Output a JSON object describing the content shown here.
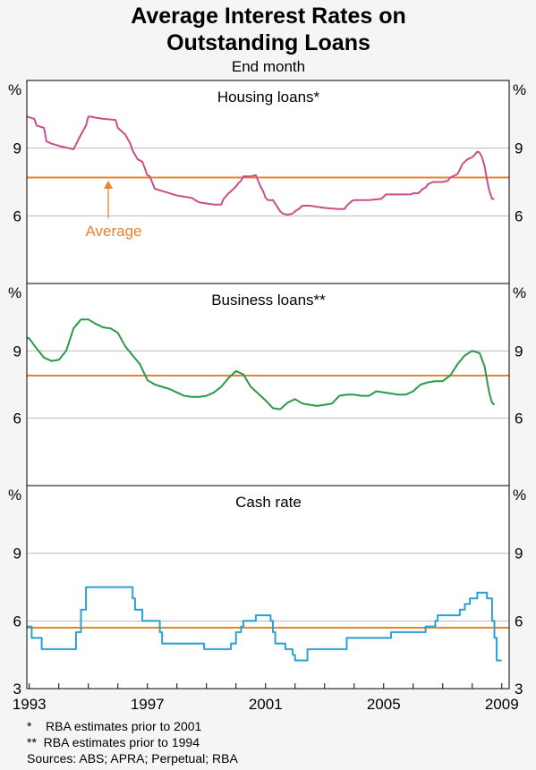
{
  "title_line1": "Average Interest Rates on",
  "title_line2": "Outstanding Loans",
  "subtitle": "End month",
  "unit_label": "%",
  "x_tick_labels": [
    "1993",
    "1997",
    "2001",
    "2005",
    "2009"
  ],
  "footnotes": [
    "*    RBA estimates prior to 2001",
    "**  RBA estimates prior to 1994",
    "Sources: ABS; APRA; Perpetual; RBA"
  ],
  "annotation": "Average",
  "colors": {
    "housing": "#c94f8a",
    "business": "#2a9a48",
    "cash": "#2aa1d4",
    "average": "#e8842e",
    "grid": "#b9b9b9",
    "frame": "#000000"
  },
  "chart_data": [
    {
      "type": "line",
      "title": "Housing loans*",
      "ylim": [
        3,
        12
      ],
      "yticks": [
        6,
        9
      ],
      "xlim": [
        1992.917,
        2009.25
      ],
      "average": 7.7,
      "series": [
        {
          "x": [
            1992.92,
            1993.17,
            1993.25,
            1993.5,
            1993.58,
            1993.75,
            1994.0,
            1994.5,
            1994.75,
            1994.92,
            1995.0,
            1995.08,
            1995.25,
            1995.5,
            1995.92,
            1996.0,
            1996.25,
            1996.42,
            1996.5,
            1996.67,
            1996.83,
            1997.0,
            1997.08,
            1997.25,
            1997.5,
            1997.75,
            1998.0,
            1998.5,
            1998.67,
            1998.75,
            1999.0,
            1999.25,
            1999.5,
            1999.58,
            1999.75,
            1999.92,
            2000.0,
            2000.08,
            2000.17,
            2000.25,
            2000.5,
            2000.67,
            2000.83,
            2000.92,
            2001.0,
            2001.08,
            2001.25,
            2001.5,
            2001.58,
            2001.75,
            2001.92,
            2002.0,
            2002.17,
            2002.25,
            2002.5,
            2002.75,
            2003.0,
            2003.5,
            2003.67,
            2003.75,
            2003.92,
            2004.0,
            2004.5,
            2004.92,
            2005.0,
            2005.08,
            2005.5,
            2005.92,
            2006.0,
            2006.17,
            2006.33,
            2006.42,
            2006.5,
            2006.67,
            2006.83,
            2007.0,
            2007.17,
            2007.25,
            2007.5,
            2007.58,
            2007.67,
            2007.83,
            2008.0,
            2008.08,
            2008.17,
            2008.25,
            2008.33,
            2008.42,
            2008.5,
            2008.58,
            2008.67,
            2008.75
          ],
          "y": [
            10.4,
            10.3,
            10.0,
            9.9,
            9.3,
            9.2,
            9.1,
            8.95,
            9.6,
            10.0,
            10.4,
            10.4,
            10.35,
            10.3,
            10.25,
            9.9,
            9.6,
            9.2,
            8.9,
            8.5,
            8.4,
            7.8,
            7.75,
            7.2,
            7.1,
            7.0,
            6.9,
            6.8,
            6.65,
            6.6,
            6.55,
            6.5,
            6.5,
            6.75,
            7.0,
            7.2,
            7.3,
            7.45,
            7.55,
            7.75,
            7.75,
            7.8,
            7.3,
            7.1,
            6.8,
            6.7,
            6.7,
            6.2,
            6.1,
            6.05,
            6.1,
            6.2,
            6.35,
            6.45,
            6.45,
            6.4,
            6.35,
            6.3,
            6.3,
            6.45,
            6.65,
            6.7,
            6.7,
            6.75,
            6.85,
            6.95,
            6.95,
            6.95,
            7.0,
            7.0,
            7.2,
            7.25,
            7.4,
            7.5,
            7.5,
            7.5,
            7.55,
            7.7,
            7.85,
            8.05,
            8.3,
            8.5,
            8.6,
            8.7,
            8.85,
            8.8,
            8.6,
            8.2,
            7.6,
            7.1,
            6.75,
            6.75
          ]
        }
      ]
    },
    {
      "type": "line",
      "title": "Business loans**",
      "ylim": [
        3,
        12
      ],
      "yticks": [
        6,
        9
      ],
      "xlim": [
        1992.917,
        2009.25
      ],
      "average": 7.9,
      "series": [
        {
          "x": [
            1992.92,
            1993.0,
            1993.25,
            1993.5,
            1993.75,
            1994.0,
            1994.25,
            1994.5,
            1994.75,
            1995.0,
            1995.25,
            1995.5,
            1995.75,
            1996.0,
            1996.25,
            1996.5,
            1996.75,
            1997.0,
            1997.25,
            1997.5,
            1997.75,
            1998.0,
            1998.25,
            1998.5,
            1998.75,
            1999.0,
            1999.25,
            1999.5,
            1999.75,
            2000.0,
            2000.25,
            2000.5,
            2000.75,
            2001.0,
            2001.25,
            2001.5,
            2001.75,
            2002.0,
            2002.25,
            2002.5,
            2002.75,
            2003.0,
            2003.25,
            2003.5,
            2003.75,
            2004.0,
            2004.25,
            2004.5,
            2004.75,
            2005.0,
            2005.25,
            2005.5,
            2005.75,
            2006.0,
            2006.25,
            2006.5,
            2006.75,
            2007.0,
            2007.25,
            2007.5,
            2007.75,
            2008.0,
            2008.25,
            2008.42,
            2008.5,
            2008.58,
            2008.67,
            2008.75
          ],
          "y": [
            9.6,
            9.55,
            9.1,
            8.7,
            8.55,
            8.6,
            9.0,
            10.0,
            10.4,
            10.4,
            10.2,
            10.05,
            10.0,
            9.8,
            9.2,
            8.8,
            8.4,
            7.7,
            7.5,
            7.4,
            7.3,
            7.15,
            7.0,
            6.95,
            6.95,
            7.0,
            7.15,
            7.4,
            7.8,
            8.1,
            7.95,
            7.4,
            7.1,
            6.8,
            6.45,
            6.4,
            6.7,
            6.85,
            6.65,
            6.6,
            6.55,
            6.6,
            6.65,
            7.0,
            7.05,
            7.05,
            7.0,
            7.0,
            7.2,
            7.15,
            7.1,
            7.05,
            7.05,
            7.2,
            7.5,
            7.6,
            7.65,
            7.65,
            7.9,
            8.4,
            8.8,
            9.0,
            8.9,
            8.3,
            7.7,
            7.1,
            6.7,
            6.6
          ]
        }
      ]
    },
    {
      "type": "line",
      "title": "Cash rate",
      "ylim": [
        3,
        12
      ],
      "yticks": [
        3,
        6,
        9
      ],
      "xlim": [
        1992.917,
        2009.25
      ],
      "average": 5.7,
      "series": [
        {
          "step": true,
          "x": [
            1992.92,
            1993.08,
            1993.42,
            1994.58,
            1994.75,
            1994.92,
            1996.5,
            1996.58,
            1996.83,
            1997.0,
            1997.42,
            1997.5,
            1998.92,
            1999.83,
            2000.0,
            2000.17,
            2000.25,
            2000.67,
            2001.17,
            2001.25,
            2001.33,
            2001.67,
            2001.92,
            2002.0,
            2002.42,
            2003.75,
            2005.25,
            2006.42,
            2006.75,
            2006.83,
            2007.58,
            2007.75,
            2007.92,
            2008.17,
            2008.33,
            2008.5,
            2008.67,
            2008.75,
            2008.83,
            2009.0
          ],
          "y": [
            5.75,
            5.25,
            4.75,
            5.5,
            6.5,
            7.5,
            7.0,
            6.5,
            6.0,
            6.0,
            5.5,
            5.0,
            4.75,
            5.0,
            5.5,
            5.75,
            6.0,
            6.25,
            6.0,
            5.5,
            5.0,
            4.75,
            4.5,
            4.25,
            4.75,
            5.25,
            5.5,
            5.75,
            6.0,
            6.25,
            6.5,
            6.75,
            7.0,
            7.25,
            7.25,
            7.0,
            6.0,
            5.25,
            4.25,
            4.25
          ]
        }
      ]
    }
  ]
}
